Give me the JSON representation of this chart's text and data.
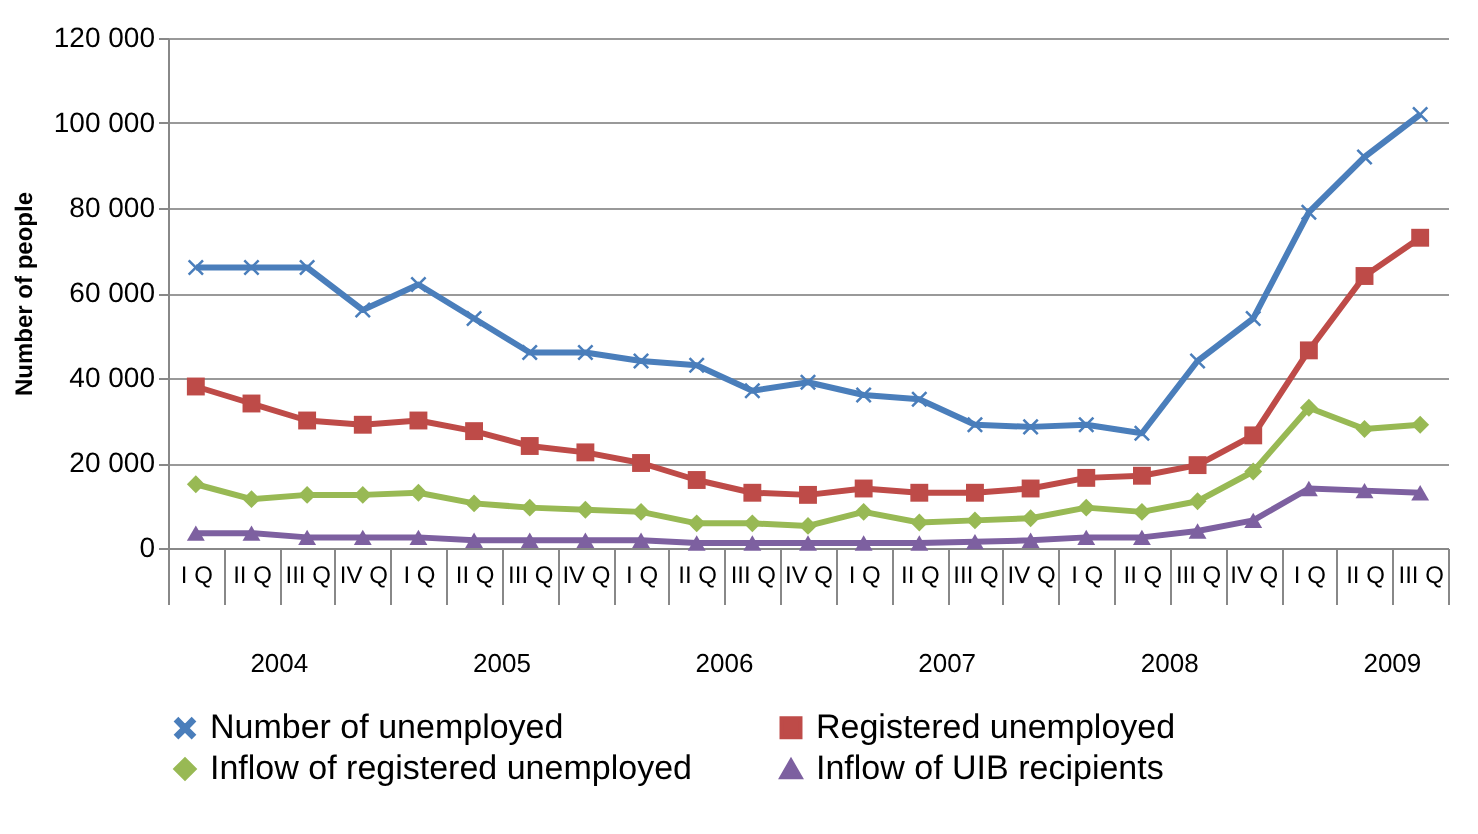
{
  "chart_data": {
    "type": "line",
    "ylabel": "Number of people",
    "categories": [
      "I Q",
      "II Q",
      "III Q",
      "IV Q",
      "I Q",
      "II Q",
      "III Q",
      "IV Q",
      "I Q",
      "II Q",
      "III Q",
      "IV Q",
      "I Q",
      "II Q",
      "III Q",
      "IV Q",
      "I Q",
      "II Q",
      "III Q",
      "IV Q",
      "I Q",
      "II Q",
      "III Q"
    ],
    "annotations": [
      "2004",
      "2005",
      "2006",
      "2007",
      "2008",
      "2009"
    ],
    "series": [
      {
        "name": "Number of unemployed",
        "color": "#4a7ebb",
        "marker": "cross",
        "values": [
          66000,
          66000,
          66000,
          56000,
          62000,
          54000,
          46000,
          46000,
          44000,
          43000,
          37000,
          39000,
          36000,
          35000,
          29000,
          28500,
          29000,
          27000,
          44000,
          54000,
          79000,
          92000,
          102000
        ]
      },
      {
        "name": "Registered unemployed",
        "color": "#be4b48",
        "marker": "square",
        "values": [
          38000,
          34000,
          30000,
          29000,
          30000,
          27500,
          24000,
          22500,
          20000,
          16000,
          13000,
          12500,
          14000,
          13000,
          13000,
          14000,
          16500,
          17000,
          19500,
          26500,
          46500,
          64000,
          73000
        ]
      },
      {
        "name": "Inflow of registered unemployed",
        "color": "#98b954",
        "marker": "diamond",
        "values": [
          15000,
          11500,
          12500,
          12500,
          13000,
          10500,
          9500,
          9000,
          8500,
          5800,
          5800,
          5200,
          8500,
          6000,
          6500,
          7000,
          9500,
          8500,
          11000,
          18000,
          33000,
          28000,
          29000
        ]
      },
      {
        "name": "Inflow of UIB recipients",
        "color": "#7d60a0",
        "marker": "triangle",
        "values": [
          3500,
          3500,
          2500,
          2500,
          2500,
          1800,
          1800,
          1800,
          1800,
          1200,
          1200,
          1200,
          1200,
          1200,
          1500,
          1800,
          2500,
          2500,
          4000,
          6500,
          14000,
          13500,
          13000
        ]
      }
    ],
    "ylim": [
      0,
      120000
    ],
    "yticks": [
      {
        "value": 0,
        "label": "0"
      },
      {
        "value": 20000,
        "label": "20 000"
      },
      {
        "value": 40000,
        "label": "40 000"
      },
      {
        "value": 60000,
        "label": "60 000"
      },
      {
        "value": 80000,
        "label": "80 000"
      },
      {
        "value": 100000,
        "label": "100 000"
      },
      {
        "value": 120000,
        "label": "120 000"
      }
    ],
    "grid": "y",
    "legend": "bottom",
    "line_style": "solid"
  }
}
